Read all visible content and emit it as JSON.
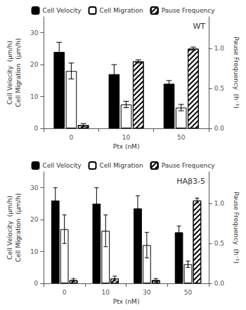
{
  "chart_data": [
    {
      "type": "bar",
      "title": "WT",
      "categories": [
        "0",
        "10",
        "50"
      ],
      "xlabel": "Ptx (nM)",
      "ylabel": "Cell Velocity  (μm/h)\nCell Migration  (μm/h)",
      "y2label": "Pause Frequency  (h⁻¹)",
      "ylim": [
        0,
        35
      ],
      "yticks": [
        0,
        10,
        20,
        30
      ],
      "y2lim": [
        0,
        1.4
      ],
      "y2ticks": [
        {
          "value": 0.0,
          "label": "0.0"
        },
        0.5,
        {
          "value": 1.0,
          "label": "1.0"
        }
      ],
      "grid": false,
      "legend": "top",
      "series": [
        {
          "name": "Cell Velocity",
          "color": "#000000",
          "values": [
            24,
            17,
            14
          ],
          "errors": [
            3,
            3,
            1
          ]
        },
        {
          "name": "Cell Migration",
          "color": "#ffffff",
          "values": [
            18,
            7.5,
            6.5
          ],
          "errors": [
            2.5,
            1,
            1
          ]
        },
        {
          "name": "Pause Frequency",
          "color": "#ffffff",
          "axis": "y2",
          "values": [
            0.04,
            0.84,
            1.0
          ],
          "errors": [
            0.02,
            0.02,
            0.02
          ]
        }
      ]
    },
    {
      "type": "bar",
      "title": "HAβ3-5",
      "categories": [
        "0",
        "10",
        "30",
        "50"
      ],
      "xlabel": "Ptx (nM)",
      "ylabel": "Cell Velocity  (μm/h)\nCell Migration  (μm/h)",
      "y2label": "Pause Frequency  (h⁻¹)",
      "ylim": [
        0,
        35
      ],
      "yticks": [
        0,
        10,
        20,
        30
      ],
      "y2lim": [
        0,
        1.4
      ],
      "y2ticks": [
        {
          "value": 0.0,
          "label": "0.0"
        },
        0.5,
        {
          "value": 1.0,
          "label": "1.0"
        }
      ],
      "grid": false,
      "legend": "top",
      "series": [
        {
          "name": "Cell Velocity",
          "color": "#000000",
          "values": [
            26,
            25,
            23.5,
            16
          ],
          "errors": [
            4,
            5,
            4,
            2
          ]
        },
        {
          "name": "Cell Migration",
          "color": "#ffffff",
          "values": [
            17,
            16.5,
            12,
            6
          ],
          "errors": [
            4.5,
            5,
            4,
            1
          ]
        },
        {
          "name": "Pause Frequency",
          "color": "#ffffff",
          "axis": "y2",
          "values": [
            0.04,
            0.06,
            0.04,
            1.04
          ],
          "errors": [
            0.02,
            0.03,
            0.02,
            0.03
          ]
        }
      ]
    }
  ]
}
